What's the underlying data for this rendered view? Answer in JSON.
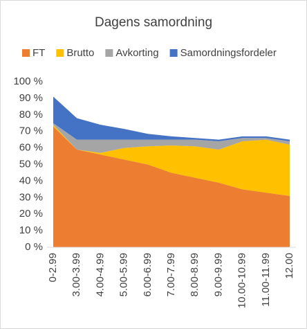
{
  "chart_data": {
    "type": "stacked-area",
    "title": "Dagens samordning",
    "categories": [
      "0-2.99",
      "3.00-3.99",
      "4.00-4.99",
      "5.00-5.99",
      "6.00-6.99",
      "7.00-7.99",
      "8.00-8.99",
      "9.00-9.99",
      "10.00-10.99",
      "11.00-11.99",
      "12.00"
    ],
    "series": [
      {
        "name": "FT",
        "color": "#ed7d31",
        "values": [
          73,
          59,
          56,
          53,
          50,
          45,
          42,
          39,
          35,
          33,
          31
        ]
      },
      {
        "name": "Brutto",
        "color": "#ffc000",
        "values": [
          1,
          0,
          1,
          7,
          11,
          16.5,
          19,
          20,
          29,
          32,
          31
        ]
      },
      {
        "name": "Avkorting",
        "color": "#a5a5a5",
        "values": [
          1,
          6,
          8,
          5,
          4,
          3.5,
          4,
          5,
          2,
          1,
          2
        ]
      },
      {
        "name": "Samordningsfordeler",
        "color": "#4472c4",
        "values": [
          16,
          13,
          9,
          6.5,
          3.5,
          2,
          1,
          1,
          1,
          1,
          1
        ]
      }
    ],
    "ylim": [
      0,
      100
    ],
    "yticks": [
      {
        "value": 0,
        "label": "0 %"
      },
      {
        "value": 10,
        "label": "10 %"
      },
      {
        "value": 20,
        "label": "20 %"
      },
      {
        "value": 30,
        "label": "30 %"
      },
      {
        "value": 40,
        "label": "40 %"
      },
      {
        "value": 50,
        "label": "50 %"
      },
      {
        "value": 60,
        "label": "60 %"
      },
      {
        "value": 70,
        "label": "70 %"
      },
      {
        "value": 80,
        "label": "80 %"
      },
      {
        "value": 90,
        "label": "90 %"
      },
      {
        "value": 100,
        "label": "100 %"
      }
    ],
    "grid": false,
    "legend": "top"
  }
}
